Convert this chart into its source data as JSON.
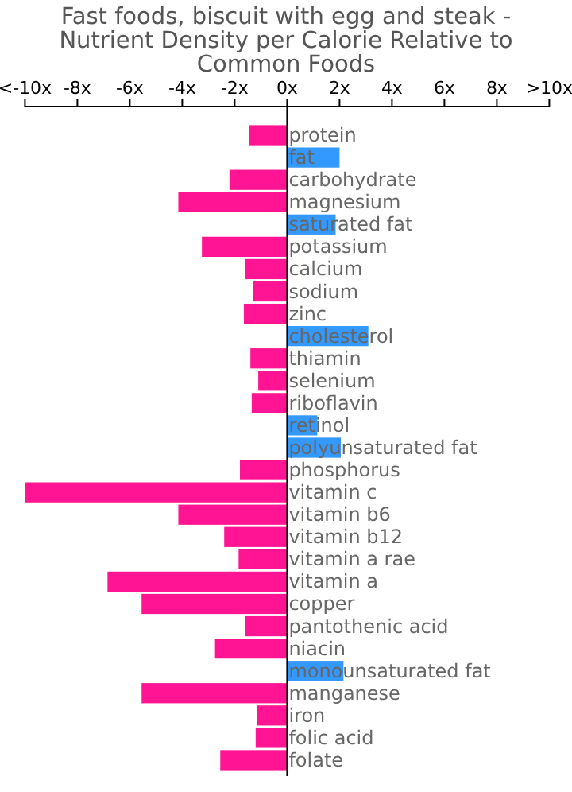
{
  "chart_data": {
    "type": "bar",
    "orientation": "horizontal",
    "title": "Fast foods, biscuit with egg and steak - Nutrient Density per Calorie Relative to Common Foods",
    "categories": [
      "protein",
      "fat",
      "carbohydrate",
      "magnesium",
      "saturated fat",
      "potassium",
      "calcium",
      "sodium",
      "zinc",
      "cholesterol",
      "thiamin",
      "selenium",
      "riboflavin",
      "retinol",
      "polyunsaturated fat",
      "phosphorus",
      "vitamin c",
      "vitamin b6",
      "vitamin b12",
      "vitamin a rae",
      "vitamin a",
      "copper",
      "pantothenic acid",
      "niacin",
      "monounsaturated fat",
      "manganese",
      "iron",
      "folic acid",
      "folate"
    ],
    "values": [
      -1.45,
      2.0,
      -2.2,
      -4.15,
      1.85,
      -3.25,
      -1.6,
      -1.3,
      -1.65,
      3.1,
      -1.4,
      -1.1,
      -1.35,
      1.15,
      2.05,
      -1.8,
      -10,
      -4.15,
      -2.4,
      -1.85,
      -6.85,
      -5.55,
      -1.6,
      -2.75,
      2.15,
      -5.55,
      -1.15,
      -1.2,
      -2.55
    ],
    "colors": [
      "#ff1493",
      "#3399ff",
      "#ff1493",
      "#ff1493",
      "#3399ff",
      "#ff1493",
      "#ff1493",
      "#ff1493",
      "#ff1493",
      "#3399ff",
      "#ff1493",
      "#ff1493",
      "#ff1493",
      "#3399ff",
      "#3399ff",
      "#ff1493",
      "#ff1493",
      "#ff1493",
      "#ff1493",
      "#ff1493",
      "#ff1493",
      "#ff1493",
      "#ff1493",
      "#ff1493",
      "#3399ff",
      "#ff1493",
      "#ff1493",
      "#ff1493",
      "#ff1493"
    ],
    "xlim": [
      -10,
      10
    ],
    "xticks": [
      {
        "value": -10,
        "label": "<-10x"
      },
      {
        "value": -8,
        "label": "-8x"
      },
      {
        "value": -6,
        "label": "-6x"
      },
      {
        "value": -4,
        "label": "-4x"
      },
      {
        "value": -2,
        "label": "-2x"
      },
      {
        "value": 0,
        "label": "0x"
      },
      {
        "value": 2,
        "label": "2x"
      },
      {
        "value": 4,
        "label": "4x"
      },
      {
        "value": 6,
        "label": "6x"
      },
      {
        "value": 8,
        "label": "8x"
      },
      {
        "value": 10,
        "label": ">10x"
      }
    ],
    "grid": false
  }
}
